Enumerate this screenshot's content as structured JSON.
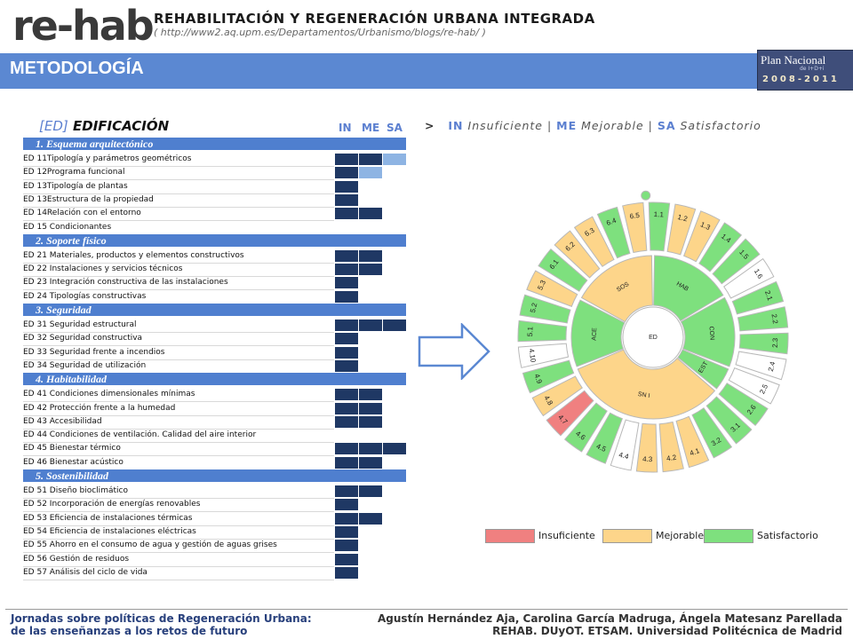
{
  "header": {
    "logo": "re-hab",
    "title": "REHABILITACIÓN Y REGENERACIÓN URBANA INTEGRADA",
    "url": "( http://www2.aq.upm.es/Departamentos/Urbanismo/blogs/re-hab/ )"
  },
  "banner": {
    "title": "METODOLOGÍA",
    "plan_line1": "Plan Nacional",
    "plan_line2": "de I+D+i",
    "plan_years": "2008-2011"
  },
  "section": {
    "bracket": "[ED]",
    "title": "EDIFICACIÓN",
    "columns": [
      "IN",
      "ME",
      "SA"
    ]
  },
  "legend_line": {
    "arrow": ">",
    "items": [
      {
        "code": "IN",
        "label": "Insuficiente"
      },
      {
        "code": "ME",
        "label": "Mejorable"
      },
      {
        "code": "SA",
        "label": "Satisfactorio"
      }
    ],
    "separator": "|"
  },
  "categories": [
    {
      "label": "1. Esquema arquitectónico",
      "items": [
        {
          "label": "ED 11Tipología y parámetros geométricos",
          "cells": [
            "dark",
            "dark",
            "light"
          ]
        },
        {
          "label": "ED 12Programa funcional",
          "cells": [
            "dark",
            "light",
            "none"
          ]
        },
        {
          "label": "ED 13Tipología de plantas",
          "cells": [
            "dark",
            "none",
            "none"
          ]
        },
        {
          "label": "ED 13Estructura  de la propiedad",
          "cells": [
            "dark",
            "none",
            "none"
          ]
        },
        {
          "label": "ED 14Relación con el entorno",
          "cells": [
            "dark",
            "dark",
            "none"
          ]
        },
        {
          "label": "ED 15  Condicionantes",
          "cells": [
            "none",
            "none",
            "none"
          ]
        }
      ]
    },
    {
      "label": "2. Soporte físico",
      "items": [
        {
          "label": "ED 21 Materiales, productos y elementos constructivos",
          "cells": [
            "dark",
            "dark",
            "none"
          ]
        },
        {
          "label": "ED 22 Instalaciones y servicios técnicos",
          "cells": [
            "dark",
            "dark",
            "none"
          ]
        },
        {
          "label": "ED 23 Integración constructiva de las instalaciones",
          "cells": [
            "dark",
            "none",
            "none"
          ]
        },
        {
          "label": "ED 24  Tipologías constructivas",
          "cells": [
            "dark",
            "none",
            "none"
          ]
        }
      ]
    },
    {
      "label": "3. Seguridad",
      "items": [
        {
          "label": "ED 31 Seguridad estructural",
          "cells": [
            "dark",
            "dark",
            "dark"
          ]
        },
        {
          "label": "ED 32 Seguridad constructiva",
          "cells": [
            "dark",
            "none",
            "none"
          ]
        },
        {
          "label": "ED 33 Seguridad frente a incendios",
          "cells": [
            "dark",
            "none",
            "none"
          ]
        },
        {
          "label": "ED 34 Seguridad de utilización",
          "cells": [
            "dark",
            "none",
            "none"
          ]
        }
      ]
    },
    {
      "label": "4. Habitabilidad",
      "items": [
        {
          "label": "ED 41 Condiciones dimensionales mínimas",
          "cells": [
            "dark",
            "dark",
            "none"
          ]
        },
        {
          "label": "ED 42 Protección frente a la humedad",
          "cells": [
            "dark",
            "dark",
            "none"
          ]
        },
        {
          "label": "ED 43 Accesibilidad",
          "cells": [
            "dark",
            "dark",
            "none"
          ]
        },
        {
          "label": "ED 44 Condiciones de ventilación. Calidad del aire interior",
          "cells": [
            "none",
            "none",
            "none"
          ]
        },
        {
          "label": "ED 45 Bienestar térmico",
          "cells": [
            "dark",
            "dark",
            "dark"
          ]
        },
        {
          "label": "ED 46 Bienestar acústico",
          "cells": [
            "dark",
            "dark",
            "none"
          ]
        }
      ]
    },
    {
      "label": "5. Sostenibilidad",
      "items": [
        {
          "label": "ED 51 Diseño bioclimático",
          "cells": [
            "dark",
            "dark",
            "none"
          ]
        },
        {
          "label": "ED 52 Incorporación de energías renovables",
          "cells": [
            "dark",
            "none",
            "none"
          ]
        },
        {
          "label": "ED 53 Eficiencia de instalaciones térmicas",
          "cells": [
            "dark",
            "dark",
            "none"
          ]
        },
        {
          "label": "ED 54 Eficiencia de instalaciones eléctricas",
          "cells": [
            "dark",
            "none",
            "none"
          ]
        },
        {
          "label": "ED 55 Ahorro en el consumo de agua y gestión de aguas grises",
          "cells": [
            "dark",
            "none",
            "none"
          ]
        },
        {
          "label": "ED 56  Gestión de residuos",
          "cells": [
            "dark",
            "none",
            "none"
          ]
        },
        {
          "label": "ED 57  Análisis del ciclo de vida",
          "cells": [
            "dark",
            "none",
            "none"
          ]
        }
      ]
    }
  ],
  "diagram": {
    "center": "ED",
    "inner": [
      {
        "label": "HAB",
        "status": "sa"
      },
      {
        "label": "CON",
        "status": "sa"
      },
      {
        "label": "EST",
        "status": "sa"
      },
      {
        "label": "SN I",
        "status": "me"
      },
      {
        "label": "ACE",
        "status": "sa"
      },
      {
        "label": "SOS",
        "status": "me"
      }
    ],
    "outer": [
      {
        "label": "1.1",
        "status": "sa"
      },
      {
        "label": "1.2",
        "status": "me"
      },
      {
        "label": "1.3",
        "status": "me"
      },
      {
        "label": "1.4",
        "status": "sa"
      },
      {
        "label": "1.5",
        "status": "sa"
      },
      {
        "label": "1.6",
        "status": "none"
      },
      {
        "label": "2.1",
        "status": "sa"
      },
      {
        "label": "2.2",
        "status": "sa"
      },
      {
        "label": "2.3",
        "status": "sa"
      },
      {
        "label": "2.4",
        "status": "none"
      },
      {
        "label": "2.5",
        "status": "none"
      },
      {
        "label": "2.6",
        "status": "sa"
      },
      {
        "label": "3.1",
        "status": "sa"
      },
      {
        "label": "3.2",
        "status": "sa"
      },
      {
        "label": "4.1",
        "status": "me"
      },
      {
        "label": "4.2",
        "status": "me"
      },
      {
        "label": "4.3",
        "status": "me"
      },
      {
        "label": "4.4",
        "status": "none"
      },
      {
        "label": "4.5",
        "status": "sa"
      },
      {
        "label": "4.6",
        "status": "sa"
      },
      {
        "label": "4.7",
        "status": "in"
      },
      {
        "label": "4.8",
        "status": "me"
      },
      {
        "label": "4.9",
        "status": "sa"
      },
      {
        "label": "4.10",
        "status": "none"
      },
      {
        "label": "5.1",
        "status": "sa"
      },
      {
        "label": "5.2",
        "status": "sa"
      },
      {
        "label": "5.3",
        "status": "me"
      },
      {
        "label": "6.1",
        "status": "sa"
      },
      {
        "label": "6.2",
        "status": "me"
      },
      {
        "label": "6.3",
        "status": "me"
      },
      {
        "label": "6.4",
        "status": "sa"
      },
      {
        "label": "6.5",
        "status": "me"
      }
    ],
    "colors": {
      "in": "#f08080",
      "me": "#fdd58a",
      "sa": "#7ee07e",
      "none": "#ffffff",
      "stroke": "#b8b8b8"
    }
  },
  "legend": [
    {
      "label": "Insuficiente",
      "color": "#f08080"
    },
    {
      "label": "Mejorable",
      "color": "#fdd58a"
    },
    {
      "label": "Satisfactorio",
      "color": "#7ee07e"
    }
  ],
  "footer": {
    "left1": "Jornadas sobre políticas de Regeneración Urbana:",
    "left2": " de las enseñanzas a los retos de futuro",
    "right1": "Agustín Hernández Aja, Carolina García Madruga, Ángela Matesanz Parellada",
    "right2": "REHAB. DUyOT. ETSAM. Universidad Politécnica de Madrid"
  }
}
